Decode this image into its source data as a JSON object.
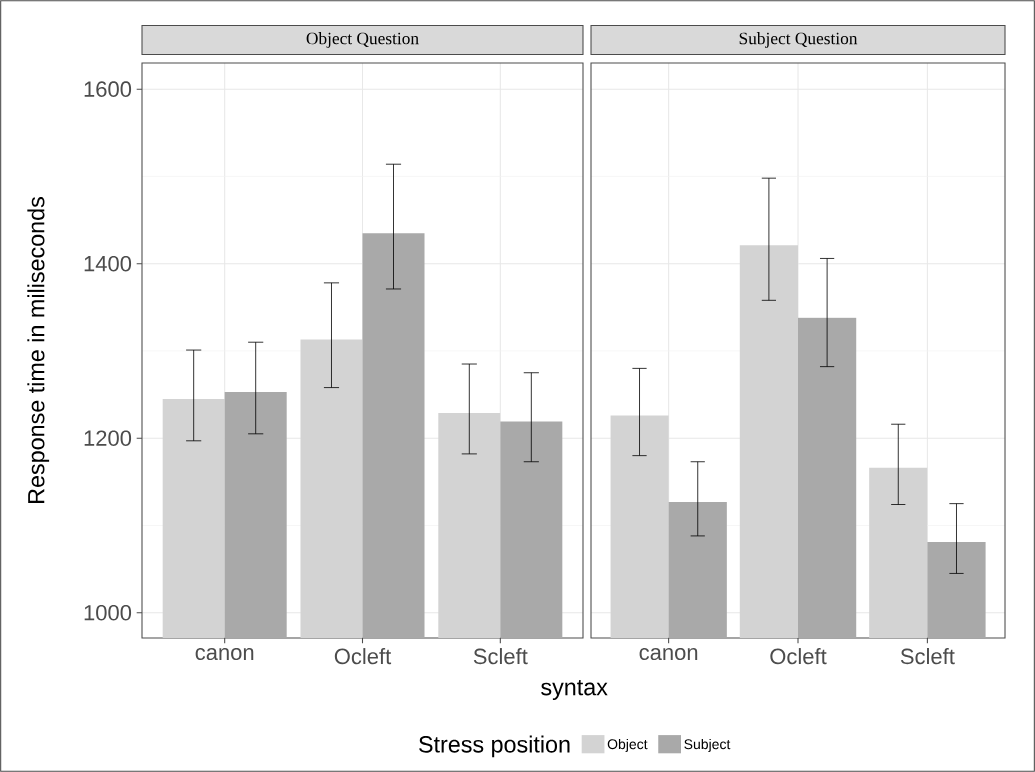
{
  "chart_data": [
    {
      "type": "bar",
      "title": "Object Question",
      "xlabel": "syntax",
      "ylabel": "Response time in miliseconds",
      "legend_title": "Stress position",
      "legend": "bottom",
      "grid": true,
      "categories": [
        "canon",
        "Ocleft",
        "Scleft"
      ],
      "ylim": [
        971,
        1630
      ],
      "yticks": [
        1000,
        1200,
        1400,
        1600
      ],
      "series": [
        {
          "name": "Object",
          "color": "#d3d3d3",
          "values": [
            1245,
            1313,
            1229
          ],
          "errors": [
            [
              1197,
              1301
            ],
            [
              1258,
              1378
            ],
            [
              1182,
              1285
            ]
          ]
        },
        {
          "name": "Subject",
          "color": "#a9a9a9",
          "values": [
            1253,
            1435,
            1219
          ],
          "errors": [
            [
              1205,
              1310
            ],
            [
              1371,
              1514
            ],
            [
              1173,
              1275
            ]
          ]
        }
      ]
    },
    {
      "type": "bar",
      "title": "Subject Question",
      "grid": true,
      "tick_labels": "x",
      "categories": [
        "canon",
        "Ocleft",
        "Scleft"
      ],
      "ylim": [
        971,
        1630
      ],
      "yticks": [
        1000,
        1200,
        1400,
        1600
      ],
      "series": [
        {
          "color": "#d3d3d3",
          "values": [
            1226,
            1421,
            1166
          ],
          "errors": [
            [
              1180,
              1280
            ],
            [
              1358,
              1498
            ],
            [
              1124,
              1216
            ]
          ]
        },
        {
          "color": "#a9a9a9",
          "values": [
            1127,
            1338,
            1081
          ],
          "errors": [
            [
              1088,
              1173
            ],
            [
              1282,
              1406
            ],
            [
              1045,
              1125
            ]
          ]
        }
      ]
    }
  ]
}
